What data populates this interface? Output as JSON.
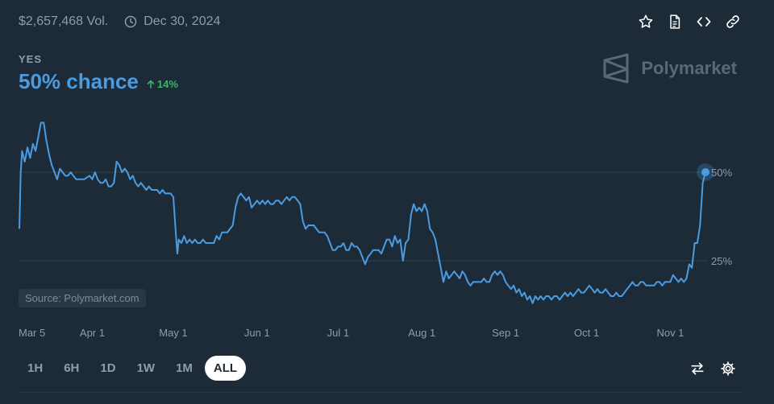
{
  "header": {
    "volume": "$2,657,468 Vol.",
    "date": "Dec 30, 2024"
  },
  "actions": [
    "star-icon",
    "document-icon",
    "code-icon",
    "link-icon"
  ],
  "market": {
    "outcome": "YES",
    "chance": "50% chance",
    "delta": "14%"
  },
  "brand": "Polymarket",
  "source": "Source: Polymarket.com",
  "timeframes": [
    {
      "label": "1H",
      "active": false
    },
    {
      "label": "6H",
      "active": false
    },
    {
      "label": "1D",
      "active": false
    },
    {
      "label": "1W",
      "active": false
    },
    {
      "label": "1M",
      "active": false
    },
    {
      "label": "ALL",
      "active": true
    }
  ],
  "colors": {
    "background": "#1d2b39",
    "line": "#4b9be0",
    "delta": "#3db468",
    "grid": "#34424f"
  },
  "chart_data": {
    "type": "line",
    "x_tick_labels": [
      "Mar 5",
      "Apr 1",
      "May 1",
      "Jun 1",
      "Jul 1",
      "Aug 1",
      "Sep 1",
      "Oct 1",
      "Nov 1"
    ],
    "x_tick_days": [
      0,
      27,
      57,
      88,
      118,
      149,
      180,
      210,
      241
    ],
    "y_tick_labels": [
      "25%",
      "50%"
    ],
    "y_ticks": [
      25,
      50
    ],
    "ylim": [
      5,
      65
    ],
    "xlim": [
      0,
      254
    ],
    "x_unit": "days since Mar 5",
    "series": [
      {
        "points": [
          [
            0,
            34
          ],
          [
            0.5,
            50
          ],
          [
            1,
            56
          ],
          [
            2,
            53
          ],
          [
            3,
            57
          ],
          [
            4,
            54
          ],
          [
            5,
            58
          ],
          [
            6,
            56
          ],
          [
            7,
            60
          ],
          [
            8,
            64
          ],
          [
            9,
            64
          ],
          [
            10,
            59
          ],
          [
            11,
            55
          ],
          [
            12,
            52
          ],
          [
            13,
            50
          ],
          [
            14,
            48
          ],
          [
            15,
            51
          ],
          [
            16,
            50
          ],
          [
            17,
            49
          ],
          [
            18,
            49
          ],
          [
            19,
            50
          ],
          [
            20,
            49
          ],
          [
            21,
            48
          ],
          [
            22,
            48
          ],
          [
            24,
            48
          ],
          [
            26,
            49
          ],
          [
            27,
            48
          ],
          [
            28,
            50
          ],
          [
            29,
            48
          ],
          [
            30,
            47
          ],
          [
            31,
            47
          ],
          [
            32,
            48
          ],
          [
            33,
            46
          ],
          [
            34,
            46
          ],
          [
            35,
            47
          ],
          [
            36,
            53
          ],
          [
            37,
            52
          ],
          [
            38,
            50
          ],
          [
            39,
            51
          ],
          [
            40,
            50
          ],
          [
            41,
            48
          ],
          [
            42,
            49
          ],
          [
            43,
            47
          ],
          [
            44,
            46
          ],
          [
            45,
            47
          ],
          [
            46,
            46
          ],
          [
            47,
            45
          ],
          [
            48,
            46
          ],
          [
            49,
            45
          ],
          [
            50,
            45
          ],
          [
            51,
            45
          ],
          [
            52,
            44
          ],
          [
            53,
            45
          ],
          [
            54,
            44
          ],
          [
            55,
            44
          ],
          [
            56,
            44
          ],
          [
            57,
            43
          ],
          [
            58,
            32
          ],
          [
            58.5,
            27
          ],
          [
            59,
            31
          ],
          [
            60,
            30
          ],
          [
            61,
            32
          ],
          [
            62,
            30
          ],
          [
            63,
            31
          ],
          [
            64,
            30
          ],
          [
            65,
            31
          ],
          [
            66,
            30
          ],
          [
            67,
            30
          ],
          [
            68,
            31
          ],
          [
            69,
            30
          ],
          [
            70,
            30
          ],
          [
            71,
            30
          ],
          [
            72,
            30
          ],
          [
            73,
            32
          ],
          [
            74,
            31
          ],
          [
            75,
            33
          ],
          [
            76,
            33
          ],
          [
            77,
            33
          ],
          [
            78,
            34
          ],
          [
            79,
            35
          ],
          [
            80,
            40
          ],
          [
            81,
            43
          ],
          [
            82,
            44
          ],
          [
            83,
            43
          ],
          [
            84,
            42
          ],
          [
            85,
            43
          ],
          [
            86,
            40
          ],
          [
            87,
            41
          ],
          [
            88,
            42
          ],
          [
            89,
            41
          ],
          [
            90,
            42
          ],
          [
            91,
            41
          ],
          [
            92,
            42
          ],
          [
            93,
            41
          ],
          [
            94,
            41
          ],
          [
            95,
            42
          ],
          [
            96,
            42
          ],
          [
            97,
            41
          ],
          [
            98,
            42
          ],
          [
            99,
            43
          ],
          [
            100,
            42
          ],
          [
            101,
            43
          ],
          [
            102,
            43
          ],
          [
            103,
            42
          ],
          [
            104,
            41
          ],
          [
            105,
            36
          ],
          [
            106,
            34
          ],
          [
            107,
            35
          ],
          [
            108,
            35
          ],
          [
            109,
            35
          ],
          [
            110,
            34
          ],
          [
            111,
            33
          ],
          [
            112,
            33
          ],
          [
            113,
            33
          ],
          [
            114,
            32
          ],
          [
            115,
            30
          ],
          [
            116,
            28
          ],
          [
            117,
            28
          ],
          [
            118,
            29
          ],
          [
            119,
            29
          ],
          [
            120,
            30
          ],
          [
            121,
            28
          ],
          [
            122,
            28
          ],
          [
            123,
            30
          ],
          [
            124,
            29
          ],
          [
            125,
            29
          ],
          [
            126,
            28
          ],
          [
            127,
            26
          ],
          [
            128,
            24
          ],
          [
            129,
            26
          ],
          [
            130,
            27
          ],
          [
            131,
            28
          ],
          [
            132,
            28
          ],
          [
            133,
            28
          ],
          [
            134,
            27
          ],
          [
            135,
            29
          ],
          [
            136,
            31
          ],
          [
            137,
            31
          ],
          [
            138,
            29
          ],
          [
            139,
            32
          ],
          [
            140,
            30
          ],
          [
            141,
            31
          ],
          [
            142,
            25
          ],
          [
            143,
            30
          ],
          [
            144,
            31
          ],
          [
            145,
            38
          ],
          [
            146,
            41
          ],
          [
            147,
            39
          ],
          [
            148,
            40
          ],
          [
            149,
            39
          ],
          [
            150,
            41
          ],
          [
            151,
            39
          ],
          [
            152,
            34
          ],
          [
            153,
            33
          ],
          [
            154,
            31
          ],
          [
            155,
            27
          ],
          [
            156,
            23
          ],
          [
            157,
            19
          ],
          [
            158,
            22
          ],
          [
            159,
            20
          ],
          [
            160,
            21
          ],
          [
            161,
            22
          ],
          [
            162,
            21
          ],
          [
            163,
            20
          ],
          [
            164,
            22
          ],
          [
            165,
            21
          ],
          [
            166,
            19
          ],
          [
            167,
            18
          ],
          [
            168,
            19
          ],
          [
            169,
            19
          ],
          [
            170,
            19
          ],
          [
            171,
            19
          ],
          [
            172,
            20
          ],
          [
            173,
            19
          ],
          [
            174,
            19
          ],
          [
            175,
            21
          ],
          [
            176,
            22
          ],
          [
            177,
            21
          ],
          [
            178,
            22
          ],
          [
            179,
            21
          ],
          [
            180,
            19
          ],
          [
            181,
            18
          ],
          [
            182,
            17
          ],
          [
            183,
            18
          ],
          [
            184,
            16
          ],
          [
            185,
            17
          ],
          [
            186,
            15
          ],
          [
            187,
            16
          ],
          [
            188,
            14
          ],
          [
            189,
            15
          ],
          [
            190,
            13
          ],
          [
            191,
            15
          ],
          [
            192,
            14
          ],
          [
            193,
            15
          ],
          [
            194,
            14
          ],
          [
            195,
            15
          ],
          [
            196,
            15
          ],
          [
            197,
            14
          ],
          [
            198,
            15
          ],
          [
            199,
            15
          ],
          [
            200,
            14
          ],
          [
            201,
            15
          ],
          [
            202,
            16
          ],
          [
            203,
            15
          ],
          [
            204,
            16
          ],
          [
            205,
            15
          ],
          [
            206,
            16
          ],
          [
            207,
            17
          ],
          [
            208,
            16
          ],
          [
            209,
            16
          ],
          [
            210,
            17
          ],
          [
            211,
            18
          ],
          [
            212,
            17
          ],
          [
            213,
            16
          ],
          [
            214,
            17
          ],
          [
            215,
            16
          ],
          [
            216,
            16
          ],
          [
            217,
            17
          ],
          [
            218,
            16
          ],
          [
            219,
            15
          ],
          [
            220,
            15
          ],
          [
            221,
            16
          ],
          [
            222,
            15
          ],
          [
            223,
            15
          ],
          [
            224,
            16
          ],
          [
            225,
            17
          ],
          [
            226,
            18
          ],
          [
            227,
            19
          ],
          [
            228,
            18
          ],
          [
            229,
            18
          ],
          [
            230,
            19
          ],
          [
            231,
            19
          ],
          [
            232,
            18
          ],
          [
            233,
            18
          ],
          [
            234,
            18
          ],
          [
            235,
            18
          ],
          [
            236,
            19
          ],
          [
            237,
            19
          ],
          [
            238,
            18
          ],
          [
            239,
            19
          ],
          [
            240,
            19
          ],
          [
            241,
            19
          ],
          [
            242,
            21
          ],
          [
            243,
            20
          ],
          [
            244,
            19
          ],
          [
            245,
            20
          ],
          [
            246,
            19
          ],
          [
            247,
            20
          ],
          [
            248,
            24
          ],
          [
            249,
            23
          ],
          [
            250,
            30
          ],
          [
            251,
            30
          ],
          [
            252,
            35
          ],
          [
            253,
            47
          ],
          [
            254,
            50
          ]
        ]
      }
    ]
  }
}
